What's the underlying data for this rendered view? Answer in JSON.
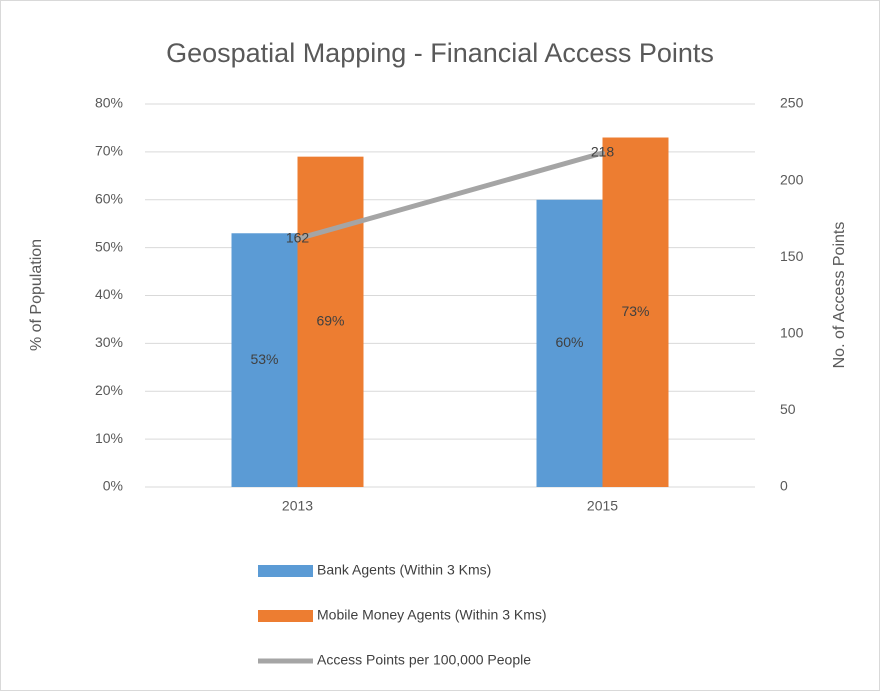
{
  "chart_data": {
    "type": "bar",
    "title": "Geospatial Mapping - Financial Access Points",
    "y_label": "% of Population",
    "y2_label": "No. of Access Points",
    "categories": [
      "2013",
      "2015"
    ],
    "series": [
      {
        "name": "Bank Agents (Within 3 Kms)",
        "color": "#5b9bd5",
        "values": [
          53,
          60
        ],
        "value_labels": [
          "53%",
          "60%"
        ]
      },
      {
        "name": "Mobile Money Agents (Within 3 Kms)",
        "color": "#ed7d31",
        "values": [
          69,
          73
        ],
        "value_labels": [
          "69%",
          "73%"
        ]
      },
      {
        "name": "Access Points per 100,000 People",
        "color": "#a5a5a5",
        "type": "line",
        "axis": "y2",
        "values": [
          162,
          218
        ]
      }
    ],
    "ylim": [
      0,
      80
    ],
    "yticks": [
      {
        "value": 0,
        "label": "0%"
      },
      {
        "value": 10,
        "label": "10%"
      },
      {
        "value": 20,
        "label": "20%"
      },
      {
        "value": 30,
        "label": "30%"
      },
      {
        "value": 40,
        "label": "40%"
      },
      {
        "value": 50,
        "label": "50%"
      },
      {
        "value": 60,
        "label": "60%"
      },
      {
        "value": 70,
        "label": "70%"
      },
      {
        "value": 80,
        "label": "80%"
      }
    ],
    "y2lim": [
      0,
      250
    ],
    "y2ticks": [
      0,
      50,
      100,
      150,
      200,
      250
    ],
    "grid": true,
    "legend": "bottom"
  }
}
